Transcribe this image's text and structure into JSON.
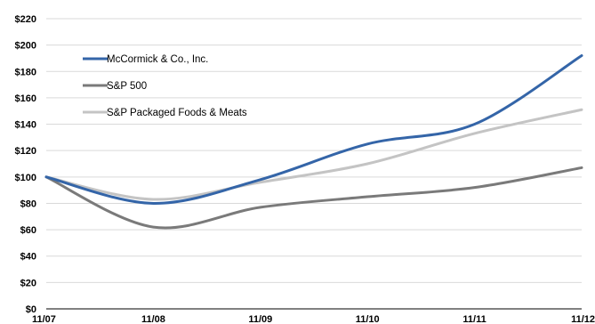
{
  "chart_data": {
    "type": "line",
    "title": "",
    "xlabel": "",
    "ylabel": "",
    "categories": [
      "11/07",
      "11/08",
      "11/09",
      "11/10",
      "11/11",
      "11/12"
    ],
    "ylim": [
      0,
      220
    ],
    "yticks": [
      "$0",
      "$20",
      "$40",
      "$60",
      "$80",
      "$100",
      "$120",
      "$140",
      "$160",
      "$180",
      "$200",
      "$220"
    ],
    "ytick_values": [
      0,
      20,
      40,
      60,
      80,
      100,
      120,
      140,
      160,
      180,
      200,
      220
    ],
    "grid": true,
    "legend_position": "top-left",
    "series": [
      {
        "name": "McCormick & Co., Inc.",
        "color": "#3465a8",
        "values": [
          100,
          80,
          98,
          125,
          140,
          192
        ]
      },
      {
        "name": "S&P 500",
        "color": "#7a7a7a",
        "values": [
          100,
          62,
          77,
          85,
          92,
          107
        ]
      },
      {
        "name": "S&P Packaged Foods & Meats",
        "color": "#c4c4c4",
        "values": [
          100,
          83,
          96,
          110,
          133,
          151
        ]
      }
    ]
  }
}
